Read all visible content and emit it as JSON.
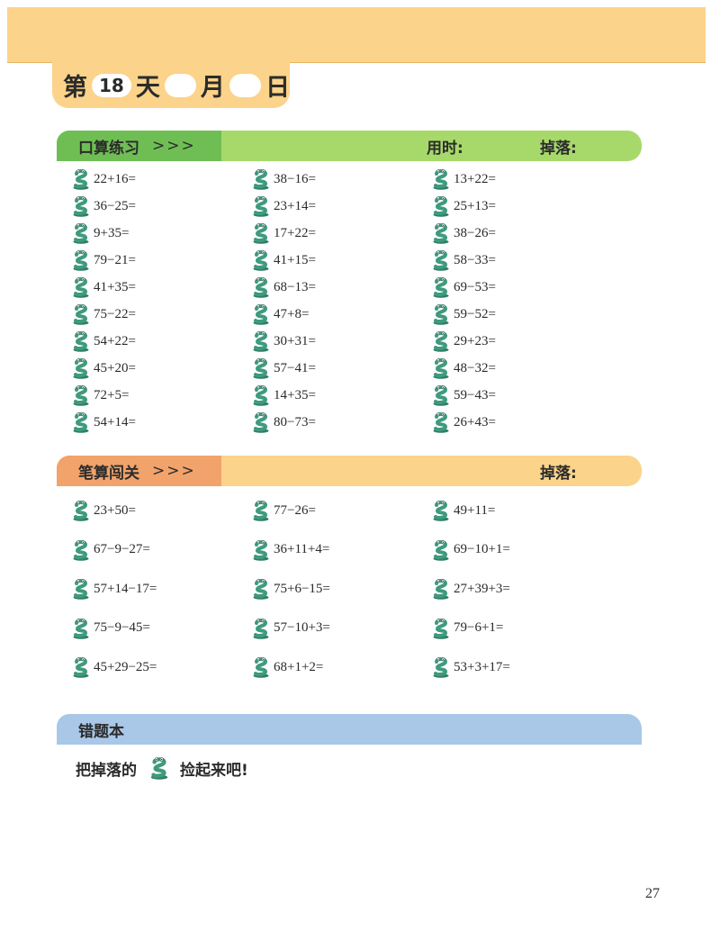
{
  "header": {
    "day_prefix": "第",
    "day_number": "18",
    "day_suffix": "天",
    "month_label": "月",
    "date_label": "日"
  },
  "oral": {
    "title": "口算练习",
    "arrows": ">>>",
    "time_label": "用时:",
    "drop_label": "掉落:",
    "columns": [
      [
        "22+16=",
        "36−25=",
        "9+35=",
        "79−21=",
        "41+35=",
        "75−22=",
        "54+22=",
        "45+20=",
        "72+5=",
        "54+14="
      ],
      [
        "38−16=",
        "23+14=",
        "17+22=",
        "41+15=",
        "68−13=",
        "47+8=",
        "30+31=",
        "57−41=",
        "14+35=",
        "80−73="
      ],
      [
        "13+22=",
        "25+13=",
        "38−26=",
        "58−33=",
        "69−53=",
        "59−52=",
        "29+23=",
        "48−32=",
        "59−43=",
        "26+43="
      ]
    ]
  },
  "written": {
    "title": "笔算闯关",
    "arrows": ">>>",
    "drop_label": "掉落:",
    "columns": [
      [
        "23+50=",
        "67−9−27=",
        "57+14−17=",
        "75−9−45=",
        "45+29−25="
      ],
      [
        "77−26=",
        "36+11+4=",
        "75+6−15=",
        "57−10+3=",
        "68+1+2="
      ],
      [
        "49+11=",
        "69−10+1=",
        "27+39+3=",
        "79−6+1=",
        "53+3+17="
      ]
    ]
  },
  "mistakes": {
    "title": "错题本",
    "text_before": "把掉落的",
    "text_after": "捡起来吧!"
  },
  "page_number": "27",
  "colors": {
    "oral_dark": "#6fbe54",
    "oral_light": "#a7d96a",
    "written_dark": "#f1a36b",
    "written_light": "#fbd38a",
    "mistakes": "#a9c8e8",
    "frog_green": "#3f9a7e"
  },
  "icons": {
    "problem_marker": "frog-icon"
  }
}
